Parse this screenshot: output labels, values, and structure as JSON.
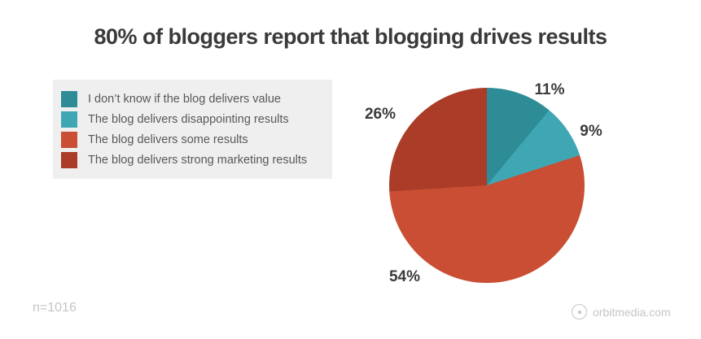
{
  "title": "80% of bloggers report that blogging drives results",
  "legend": {
    "items": [
      {
        "label": "I don’t know if the blog delivers value",
        "color": "#2e8c96"
      },
      {
        "label": "The blog delivers disappointing results",
        "color": "#3fa7b3"
      },
      {
        "label": "The blog delivers some results",
        "color": "#c94e33"
      },
      {
        "label": "The blog delivers strong marketing results",
        "color": "#ab3c28"
      }
    ],
    "background": "#efefef"
  },
  "chart_data": {
    "type": "pie",
    "title": "80% of bloggers report that blogging drives results",
    "categories": [
      "I don’t know if the blog delivers value",
      "The blog delivers disappointing results",
      "The blog delivers some results",
      "The blog delivers strong marketing results"
    ],
    "values": [
      11,
      9,
      54,
      26
    ],
    "slice_labels": [
      "11%",
      "9%",
      "54%",
      "26%"
    ],
    "colors": [
      "#2e8c96",
      "#3fa7b3",
      "#c94e33",
      "#ab3c28"
    ],
    "start_angle_deg": 0,
    "direction": "clockwise",
    "legend_position": "left"
  },
  "footer": {
    "sample_size": "n=1016",
    "brand": "orbitmedia.com"
  }
}
